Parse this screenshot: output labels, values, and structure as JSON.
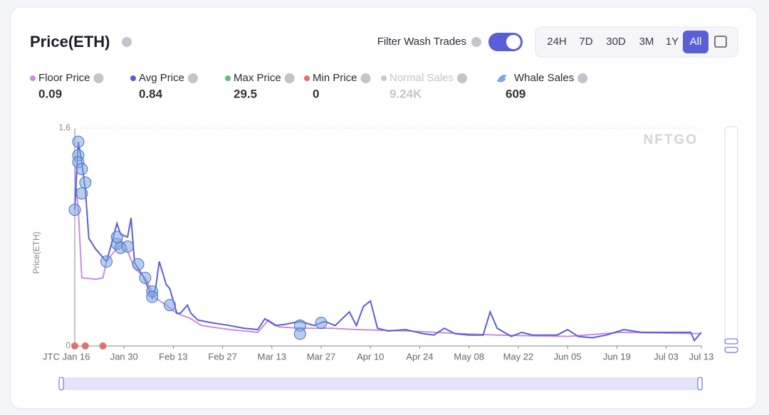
{
  "header": {
    "title": "Price(ETH)",
    "filter_label": "Filter Wash Trades",
    "filter_on": true,
    "ranges": [
      "24H",
      "7D",
      "30D",
      "3M",
      "1Y",
      "All"
    ],
    "active_range": "All"
  },
  "chart_data": {
    "type": "line",
    "y_label": "Price(ETH)",
    "watermark": "NFTGO",
    "timezone_label": "JTC",
    "xlim": [
      0,
      178
    ],
    "xticks": [
      {
        "value": 0,
        "label": "Jan 16"
      },
      {
        "value": 14,
        "label": "Jan 30"
      },
      {
        "value": 28,
        "label": "Feb 13"
      },
      {
        "value": 42,
        "label": "Feb 27"
      },
      {
        "value": 56,
        "label": "Mar 13"
      },
      {
        "value": 70,
        "label": "Mar 27"
      },
      {
        "value": 84,
        "label": "Apr 10"
      },
      {
        "value": 98,
        "label": "Apr 24"
      },
      {
        "value": 112,
        "label": "May 08"
      },
      {
        "value": 126,
        "label": "May 22"
      },
      {
        "value": 140,
        "label": "Jun 05"
      },
      {
        "value": 154,
        "label": "Jun 19"
      },
      {
        "value": 168,
        "label": "Jul 03"
      },
      {
        "value": 178,
        "label": "Jul 13"
      }
    ],
    "ylim": [
      0,
      1.6
    ],
    "yticks": [
      0,
      1.6
    ],
    "series": [
      {
        "name": "Floor Price",
        "color": "#c98ee0",
        "summary": "0.09",
        "x": [
          0,
          1,
          2,
          6,
          8,
          9,
          12,
          14,
          17,
          20,
          23,
          26,
          29,
          33,
          36,
          44,
          52,
          55,
          58,
          64,
          73,
          80,
          95,
          110,
          120,
          140,
          155,
          178
        ],
        "values": [
          1.29,
          1.0,
          0.5,
          0.49,
          0.5,
          0.62,
          0.72,
          0.76,
          0.57,
          0.5,
          0.35,
          0.3,
          0.24,
          0.2,
          0.15,
          0.12,
          0.1,
          0.19,
          0.14,
          0.13,
          0.13,
          0.12,
          0.11,
          0.09,
          0.08,
          0.07,
          0.1,
          0.09
        ]
      },
      {
        "name": "Avg Price",
        "color": "#5a5fd8",
        "summary": "0.84",
        "x": [
          0,
          1,
          2,
          3,
          4,
          6,
          7,
          9,
          10,
          12,
          13,
          15,
          16,
          17,
          19,
          20,
          22,
          23,
          24,
          26,
          27,
          29,
          30,
          32,
          33,
          35,
          39,
          44,
          48,
          52,
          54,
          57,
          60,
          64,
          68,
          71,
          74,
          78,
          80,
          82,
          84,
          86,
          89,
          94,
          99,
          102,
          105,
          108,
          112,
          116,
          118,
          120,
          124,
          127,
          130,
          137,
          140,
          143,
          147,
          151,
          156,
          161,
          167,
          171,
          175,
          176,
          178
        ],
        "values": [
          1.0,
          1.5,
          1.35,
          1.15,
          0.79,
          0.71,
          0.68,
          0.62,
          0.71,
          0.9,
          0.82,
          0.8,
          0.94,
          0.61,
          0.53,
          0.48,
          0.35,
          0.43,
          0.62,
          0.45,
          0.42,
          0.24,
          0.24,
          0.3,
          0.24,
          0.19,
          0.17,
          0.15,
          0.13,
          0.12,
          0.2,
          0.15,
          0.16,
          0.18,
          0.15,
          0.18,
          0.15,
          0.25,
          0.15,
          0.29,
          0.33,
          0.13,
          0.11,
          0.12,
          0.09,
          0.08,
          0.13,
          0.09,
          0.08,
          0.08,
          0.25,
          0.13,
          0.07,
          0.1,
          0.08,
          0.08,
          0.12,
          0.07,
          0.06,
          0.08,
          0.12,
          0.1,
          0.1,
          0.1,
          0.1,
          0.04,
          0.1
        ]
      },
      {
        "name": "Max Price",
        "color": "#5cbf7d",
        "summary": "29.5"
      },
      {
        "name": "Min Price",
        "color": "#e0706c",
        "summary": "0",
        "x": [
          0,
          3,
          8
        ],
        "values": [
          0,
          0,
          0
        ]
      },
      {
        "name": "Normal Sales",
        "color": "#c8c8d0",
        "summary": "9.24K",
        "disabled": true
      },
      {
        "name": "Whale Sales",
        "color": "#7ea6e0",
        "summary": "609",
        "x": [
          0,
          1,
          1,
          1,
          2,
          3,
          2,
          9,
          12,
          12,
          13,
          15,
          18,
          20,
          22,
          22,
          27,
          64,
          64,
          70
        ],
        "values": [
          1.0,
          1.5,
          1.4,
          1.35,
          1.3,
          1.2,
          1.12,
          0.62,
          0.75,
          0.8,
          0.72,
          0.73,
          0.6,
          0.5,
          0.4,
          0.36,
          0.3,
          0.15,
          0.09,
          0.17
        ]
      }
    ]
  }
}
